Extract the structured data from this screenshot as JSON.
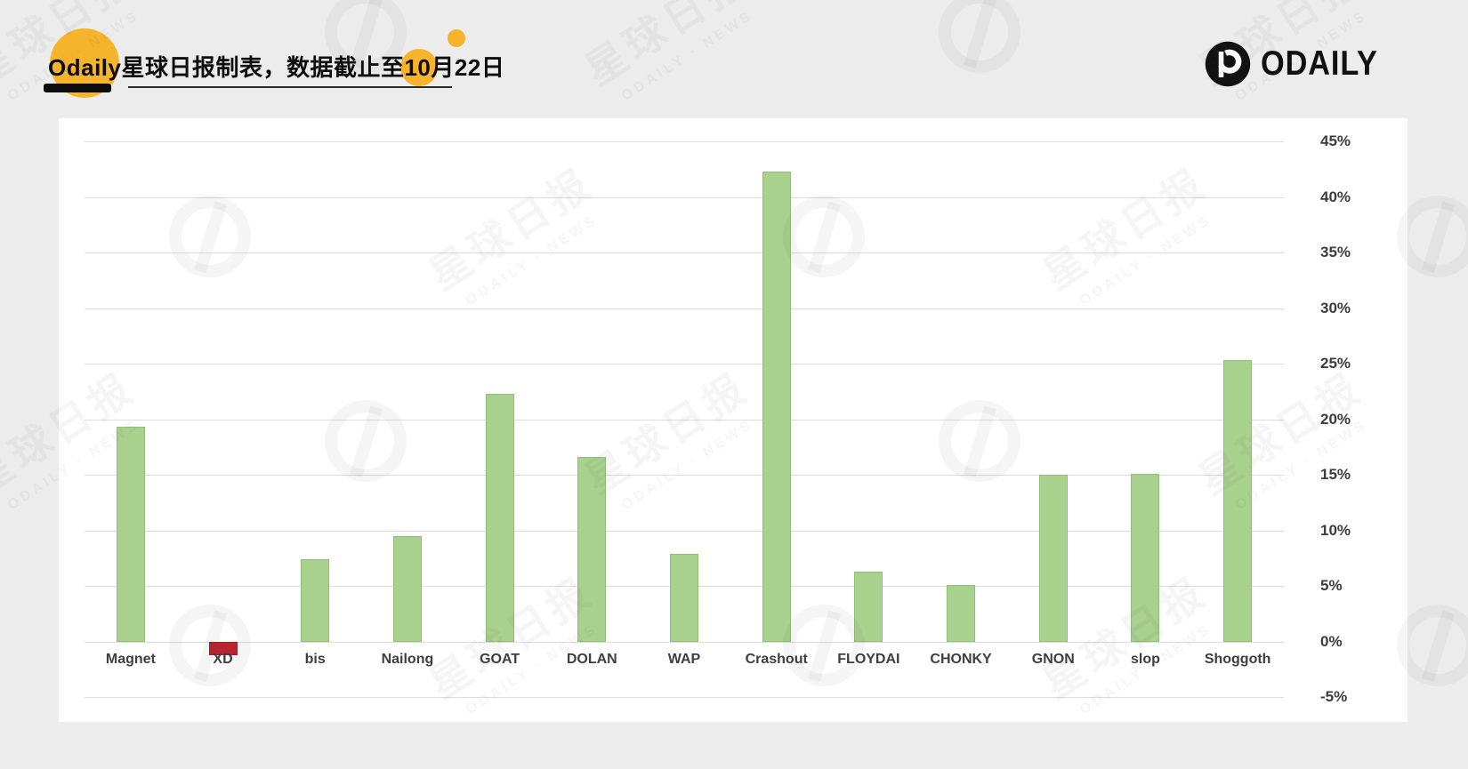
{
  "header": {
    "title": "Odaily星球日报制表，数据截止至10月22日",
    "logo_text": "ODAILY"
  },
  "watermark": {
    "line1": "星球日报",
    "line2": "ODAILY · NEWS"
  },
  "colors": {
    "accent_yellow": "#f6b42c",
    "positive_bar": "#a9d18e",
    "negative_bar": "#b82431",
    "gridline": "#dcdcdc",
    "text": "#3c3c3c",
    "card_background": "#ffffff",
    "page_background": "#ececec"
  },
  "chart_data": {
    "type": "bar",
    "title": "Odaily星球日报制表，数据截止至10月22日",
    "categories": [
      "Magnet",
      "XD",
      "bis",
      "Nailong",
      "GOAT",
      "DOLAN",
      "WAP",
      "Crashout",
      "FLOYDAI",
      "CHONKY",
      "GNON",
      "slop",
      "Shoggoth"
    ],
    "values": [
      19.3,
      -1.2,
      7.4,
      9.5,
      22.3,
      16.6,
      7.9,
      42.3,
      6.3,
      5.1,
      15.0,
      15.1,
      25.3
    ],
    "xlabel": "",
    "ylabel": "",
    "ylim": [
      -5,
      45
    ],
    "y_ticks": [
      45,
      40,
      35,
      30,
      25,
      20,
      15,
      10,
      5,
      0,
      -5
    ],
    "tick_suffix": "%",
    "grid": true,
    "legend": "none",
    "value_axis_side": "right"
  }
}
